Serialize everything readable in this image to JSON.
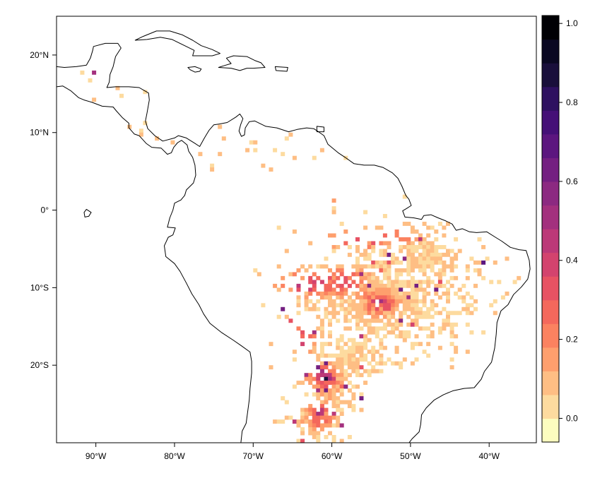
{
  "map": {
    "lon_range": [
      -95,
      -34
    ],
    "lat_range": [
      -30,
      25
    ],
    "x_ticks": [
      {
        "value": -90,
        "label": "90°W"
      },
      {
        "value": -80,
        "label": "80°W"
      },
      {
        "value": -70,
        "label": "70°W"
      },
      {
        "value": -60,
        "label": "60°W"
      },
      {
        "value": -50,
        "label": "50°W"
      },
      {
        "value": -40,
        "label": "40°W"
      }
    ],
    "y_ticks": [
      {
        "value": 20,
        "label": "20°N"
      },
      {
        "value": 10,
        "label": "10°N"
      },
      {
        "value": 0,
        "label": "0°"
      },
      {
        "value": -10,
        "label": "10°S"
      },
      {
        "value": -20,
        "label": "20°S"
      }
    ]
  },
  "colorbar": {
    "range": [
      -0.06,
      1.02
    ],
    "ticks": [
      {
        "value": 0.0,
        "label": "0.0"
      },
      {
        "value": 0.2,
        "label": "0.2"
      },
      {
        "value": 0.4,
        "label": "0.4"
      },
      {
        "value": 0.6,
        "label": "0.6"
      },
      {
        "value": 0.8,
        "label": "0.8"
      },
      {
        "value": 1.0,
        "label": "1.0"
      }
    ],
    "colors": [
      "#FCFDBF",
      "#FDDB9F",
      "#FEBE84",
      "#FE9F6D",
      "#FB8260",
      "#F4685C",
      "#E75263",
      "#D3436E",
      "#BC3978",
      "#A3307E",
      "#8C2981",
      "#741F81",
      "#5C167F",
      "#451077",
      "#2E1160",
      "#190F3B",
      "#0A0822",
      "#000004"
    ]
  }
}
